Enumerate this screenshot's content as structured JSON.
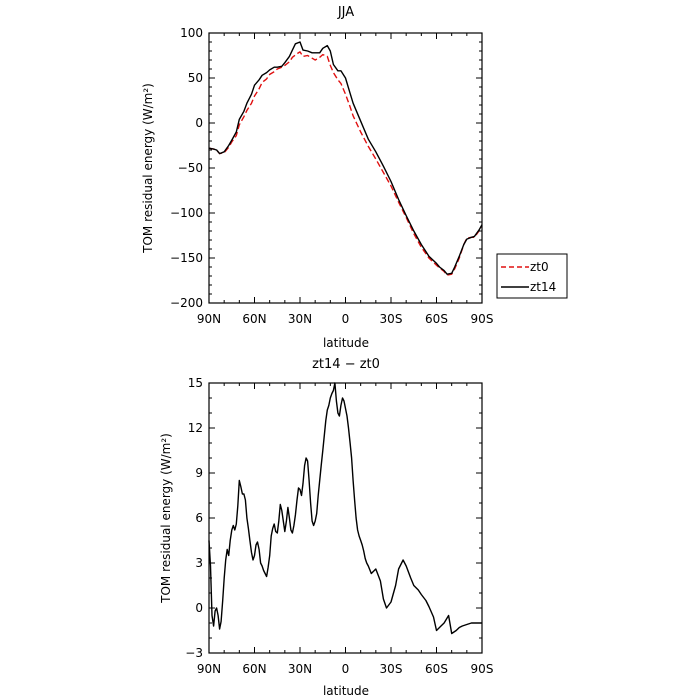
{
  "chart_data": [
    {
      "type": "line",
      "title": "JJA",
      "xlabel": "latitude",
      "ylabel": "TOM residual energy (W/m²)",
      "xlim": [
        90,
        -90
      ],
      "ylim": [
        -200,
        100
      ],
      "xticks": [
        90,
        60,
        30,
        0,
        -30,
        -60,
        -90
      ],
      "xtick_labels": [
        "90N",
        "60N",
        "30N",
        "0",
        "30S",
        "60S",
        "90S"
      ],
      "yticks": [
        -200,
        -150,
        -100,
        -50,
        0,
        50,
        100
      ],
      "ytick_labels": [
        "−200",
        "−150",
        "−100",
        "−50",
        "0",
        "50",
        "100"
      ],
      "legend": "right",
      "series": [
        {
          "name": "zt0",
          "color": "#e01010",
          "dash": "dashed",
          "x": [
            90,
            87,
            85,
            83,
            80,
            77,
            75,
            72,
            70,
            67,
            65,
            62,
            60,
            57,
            55,
            52,
            50,
            47,
            45,
            42,
            40,
            37,
            35,
            32,
            30,
            28,
            25,
            22,
            20,
            17,
            15,
            12,
            10,
            8,
            5,
            3,
            0,
            -3,
            -5,
            -10,
            -15,
            -20,
            -25,
            -30,
            -35,
            -40,
            -45,
            -50,
            -55,
            -60,
            -62,
            -65,
            -67,
            -70,
            -72,
            -75,
            -78,
            -80,
            -83,
            -85,
            -88,
            -90
          ],
          "y": [
            -28,
            -29,
            -30,
            -34,
            -33,
            -27,
            -21,
            -14,
            -2,
            7,
            14,
            22,
            30,
            38,
            45,
            49,
            54,
            57,
            60,
            62,
            64,
            68,
            73,
            77,
            79,
            74,
            75,
            72,
            70,
            73,
            76,
            74,
            64,
            56,
            48,
            44,
            32,
            18,
            8,
            -10,
            -26,
            -40,
            -55,
            -70,
            -88,
            -105,
            -123,
            -138,
            -150,
            -158,
            -161,
            -165,
            -169,
            -168,
            -162,
            -150,
            -135,
            -128,
            -127,
            -127,
            -120,
            -115
          ]
        },
        {
          "name": "zt14",
          "color": "#000000",
          "dash": "solid",
          "x": [
            90,
            87,
            85,
            83,
            80,
            77,
            75,
            72,
            70,
            67,
            65,
            62,
            60,
            57,
            55,
            52,
            50,
            47,
            45,
            42,
            40,
            37,
            35,
            33,
            30,
            28,
            25,
            22,
            20,
            17,
            15,
            12,
            10,
            8,
            5,
            3,
            0,
            -3,
            -5,
            -10,
            -15,
            -20,
            -25,
            -30,
            -35,
            -40,
            -45,
            -50,
            -55,
            -60,
            -62,
            -65,
            -67,
            -70,
            -72,
            -75,
            -78,
            -80,
            -83,
            -85,
            -88,
            -90
          ],
          "y": [
            -28,
            -29,
            -30,
            -34,
            -32,
            -25,
            -19,
            -10,
            4,
            13,
            22,
            32,
            42,
            48,
            53,
            56,
            59,
            62,
            62,
            63,
            67,
            74,
            81,
            88,
            90,
            81,
            80,
            78,
            78,
            78,
            83,
            86,
            80,
            65,
            58,
            58,
            50,
            33,
            22,
            2,
            -18,
            -32,
            -48,
            -65,
            -85,
            -103,
            -120,
            -135,
            -148,
            -156,
            -160,
            -164,
            -168,
            -167,
            -160,
            -148,
            -135,
            -129,
            -127,
            -126,
            -119,
            -113
          ]
        }
      ]
    },
    {
      "type": "line",
      "title": "zt14 − zt0",
      "xlabel": "latitude",
      "ylabel": "TOM residual energy (W/m²)",
      "xlim": [
        90,
        -90
      ],
      "ylim": [
        -3,
        15
      ],
      "xticks": [
        90,
        60,
        30,
        0,
        -30,
        -60,
        -90
      ],
      "xtick_labels": [
        "90N",
        "60N",
        "30N",
        "0",
        "30S",
        "60S",
        "90S"
      ],
      "yticks": [
        -3,
        0,
        3,
        6,
        9,
        12,
        15
      ],
      "ytick_labels": [
        "−3",
        "0",
        "3",
        "6",
        "9",
        "12",
        "15"
      ],
      "series": [
        {
          "color": "#000000",
          "dash": "solid",
          "x": [
            90,
            89,
            88,
            87,
            86,
            85,
            84,
            83,
            82,
            81,
            80,
            79,
            78,
            77,
            76,
            75,
            74,
            73,
            72,
            71,
            70,
            69,
            68,
            67,
            66,
            65,
            64,
            63,
            62,
            61,
            60,
            59,
            58,
            57,
            56,
            55,
            54,
            53,
            52,
            51,
            50,
            49,
            48,
            47,
            46,
            45,
            44,
            43,
            42,
            41,
            40,
            39,
            38,
            37,
            36,
            35,
            34,
            33,
            32,
            31,
            30,
            29,
            28,
            27,
            26,
            25,
            24,
            23,
            22,
            21,
            20,
            19,
            18,
            17,
            16,
            15,
            14,
            13,
            12,
            11,
            10,
            9,
            8,
            7,
            6,
            5,
            4,
            3,
            2,
            1,
            0,
            -1,
            -2,
            -3,
            -4,
            -5,
            -6,
            -7,
            -8,
            -9,
            -10,
            -11,
            -12,
            -13,
            -14,
            -15,
            -17,
            -20,
            -23,
            -25,
            -27,
            -30,
            -33,
            -35,
            -38,
            -40,
            -43,
            -45,
            -48,
            -50,
            -53,
            -55,
            -58,
            -60,
            -63,
            -65,
            -68,
            -70,
            -73,
            -75,
            -77,
            -80,
            -83,
            -85,
            -88,
            -90
          ],
          "y": [
            4.5,
            2.8,
            -0.5,
            -1.2,
            -0.2,
            0.0,
            -0.5,
            -1.4,
            -0.9,
            0.5,
            2.0,
            3.2,
            3.9,
            3.5,
            4.5,
            5.2,
            5.5,
            5.2,
            5.6,
            6.8,
            8.5,
            8.1,
            7.6,
            7.6,
            7.2,
            6.0,
            5.3,
            4.5,
            3.7,
            3.2,
            3.5,
            4.2,
            4.4,
            3.9,
            3.0,
            2.8,
            2.5,
            2.3,
            2.1,
            2.7,
            3.5,
            4.8,
            5.3,
            5.6,
            5.1,
            5.0,
            5.8,
            6.9,
            6.5,
            5.8,
            5.1,
            5.8,
            6.7,
            6.0,
            5.2,
            5.0,
            5.5,
            6.2,
            7.2,
            8.0,
            7.9,
            7.5,
            8.3,
            9.5,
            10.0,
            9.8,
            8.5,
            7.0,
            5.8,
            5.5,
            5.8,
            6.3,
            7.5,
            8.5,
            9.5,
            10.5,
            11.5,
            12.5,
            13.2,
            13.5,
            14.0,
            14.3,
            14.5,
            15.0,
            13.8,
            13.0,
            12.8,
            13.5,
            14.0,
            13.8,
            13.3,
            12.8,
            12.0,
            11.0,
            10.0,
            8.5,
            7.2,
            6.0,
            5.2,
            4.8,
            4.5,
            4.2,
            3.8,
            3.3,
            3.0,
            2.8,
            2.3,
            2.6,
            1.8,
            0.6,
            0.0,
            0.4,
            1.5,
            2.6,
            3.2,
            2.8,
            2.0,
            1.5,
            1.2,
            0.9,
            0.5,
            0.1,
            -0.6,
            -1.5,
            -1.2,
            -1.0,
            -0.5,
            -1.7,
            -1.5,
            -1.3,
            -1.2,
            -1.1,
            -1.0,
            -1.0,
            -1.0,
            -1.0
          ]
        }
      ]
    }
  ]
}
